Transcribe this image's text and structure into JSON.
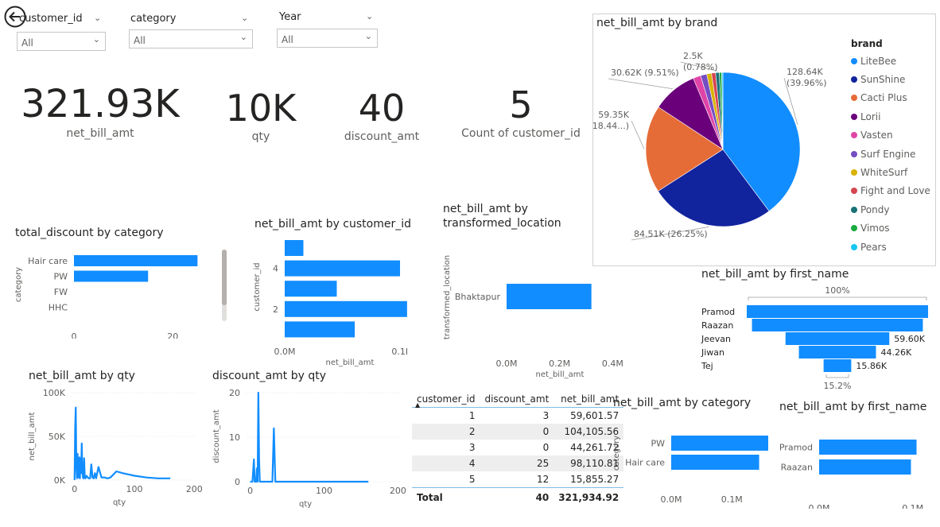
{
  "slicers": [
    {
      "label": "customer_id",
      "value": "All"
    },
    {
      "label": "category",
      "value": "All"
    },
    {
      "label": "Year",
      "value": "All"
    }
  ],
  "kpis": [
    {
      "value": "321.93K",
      "label": "net_bill_amt"
    },
    {
      "value": "10K",
      "label": "qty"
    },
    {
      "value": "40",
      "label": "discount_amt"
    },
    {
      "value": "5",
      "label": "Count of customer_id"
    }
  ],
  "colors": {
    "bar": "#118dff",
    "axis": "#605e5c"
  },
  "table": {
    "headers": [
      "customer_id",
      "discount_amt",
      "net_bill_amt"
    ],
    "rows": [
      [
        "1",
        "3",
        "59,601.57"
      ],
      [
        "2",
        "0",
        "104,105.56"
      ],
      [
        "3",
        "0",
        "44,261.72"
      ],
      [
        "4",
        "25",
        "98,110.81"
      ],
      [
        "5",
        "12",
        "15,855.27"
      ]
    ],
    "total": [
      "Total",
      "40",
      "321,934.92"
    ]
  },
  "chart_data": [
    {
      "id": "pie",
      "type": "pie",
      "title": "net_bill_amt by brand",
      "legend_title": "brand",
      "legend_position": "right",
      "slices": [
        {
          "name": "LiteBee",
          "value": 128.64,
          "color": "#118dff",
          "label": "128.64K",
          "pct": "(39.96%)"
        },
        {
          "name": "SunShine",
          "value": 84.51,
          "color": "#12239e",
          "label": "84.51K (26.25%)"
        },
        {
          "name": "Cacti Plus",
          "value": 59.35,
          "color": "#e66c37",
          "label": "59.35K",
          "pct": "(18.44...)"
        },
        {
          "name": "Lorii",
          "value": 30.62,
          "color": "#6b007b",
          "label": "30.62K (9.51%)"
        },
        {
          "name": "Vasten",
          "value": 5.2,
          "color": "#e044a7",
          "label": ""
        },
        {
          "name": "Surf Engine",
          "value": 4.2,
          "color": "#744ec2",
          "label": ""
        },
        {
          "name": "WhiteSurf",
          "value": 3.2,
          "color": "#d9b300",
          "label": ""
        },
        {
          "name": "Fight and Love",
          "value": 2.8,
          "color": "#d64550",
          "label": ""
        },
        {
          "name": "Pondy",
          "value": 2.5,
          "color": "#197278",
          "label": "2.5K",
          "pct": "(0.78%)"
        },
        {
          "name": "Vimos",
          "value": 1.6,
          "color": "#1aab40",
          "label": ""
        },
        {
          "name": "Pears",
          "value": 0.8,
          "color": "#15c6f4",
          "label": ""
        }
      ]
    },
    {
      "id": "discount_by_category",
      "type": "bar",
      "title": "total_discount by category",
      "ylabel": "category",
      "xlabel": "",
      "categories": [
        "Hair care",
        "PW",
        "FW",
        "HHC"
      ],
      "values": [
        25,
        15,
        0,
        0
      ],
      "xlim": [
        0,
        28
      ],
      "ticks": [
        0,
        20
      ],
      "tick_labels": [
        "0",
        "20"
      ]
    },
    {
      "id": "bill_by_customer",
      "type": "bar",
      "title": "net_bill_amt by customer_id",
      "ylabel": "customer_id",
      "xlabel": "net_bill_amt",
      "categories": [
        "5",
        "4",
        "3",
        "2",
        "1"
      ],
      "category_tick_labels": [
        "",
        "4",
        "",
        "2",
        ""
      ],
      "values": [
        0.0159,
        0.0981,
        0.0443,
        0.1041,
        0.0596
      ],
      "xlim": [
        0,
        0.115
      ],
      "ticks": [
        0,
        0.1
      ],
      "tick_labels": [
        "0.0M",
        "0.1M"
      ]
    },
    {
      "id": "bill_by_location",
      "type": "bar",
      "title": "net_bill_amt by transformed_location",
      "ylabel": "transformed_location",
      "xlabel": "net_bill_amt",
      "categories": [
        "Bhaktapur"
      ],
      "values": [
        0.32
      ],
      "xlim": [
        0,
        0.45
      ],
      "ticks": [
        0,
        0.2,
        0.4
      ],
      "tick_labels": [
        "0.0M",
        "0.2M",
        "0.4M"
      ]
    },
    {
      "id": "funnel",
      "type": "bar",
      "title": "net_bill_amt by first_name",
      "top_label": "100%",
      "bottom_label": "15.2%",
      "categories": [
        "Pramod",
        "Raazan",
        "Jeevan",
        "Jiwan",
        "Tej"
      ],
      "values": [
        104.11,
        98.11,
        59.6,
        44.26,
        15.86
      ],
      "value_labels": [
        "",
        "",
        "59.60K",
        "44.26K",
        "15.86K"
      ]
    },
    {
      "id": "bill_by_qty",
      "type": "line",
      "title": "net_bill_amt by qty",
      "xlabel": "qty",
      "ylabel": "net_bill_amt",
      "x": [
        0,
        1,
        2,
        3,
        4,
        5,
        6,
        7,
        8,
        9,
        10,
        11,
        12,
        13,
        14,
        15,
        16,
        17,
        18,
        20,
        22,
        24,
        26,
        28,
        30,
        32,
        34,
        36,
        40,
        45,
        50,
        55,
        60,
        70,
        80,
        100,
        120,
        140,
        160
      ],
      "y": [
        0,
        60000,
        83000,
        15000,
        2000,
        30000,
        5000,
        3000,
        26000,
        2000,
        25000,
        8000,
        42000,
        12000,
        3000,
        2000,
        25000,
        3000,
        2000,
        5000,
        3000,
        2000,
        2000,
        18000,
        3000,
        2000,
        8000,
        2000,
        15000,
        3000,
        3000,
        2000,
        3000,
        10000,
        8000,
        5000,
        3000,
        2000,
        2000
      ],
      "xlim": [
        -5,
        205
      ],
      "ylim": [
        0,
        100000
      ],
      "xticks": [
        0,
        100,
        200
      ],
      "yticks": [
        0,
        50000,
        100000
      ],
      "ytick_labels": [
        "0K",
        "50K",
        "100K"
      ]
    },
    {
      "id": "discount_by_qty",
      "type": "line",
      "title": "discount_amt by qty",
      "xlabel": "qty",
      "ylabel": "discount_amt",
      "x": [
        0,
        3,
        5,
        6,
        7,
        8,
        9,
        10,
        11,
        12,
        13,
        14,
        15,
        17,
        20,
        25,
        30,
        32,
        34,
        36,
        38,
        40,
        45,
        60,
        80,
        100,
        120,
        140,
        160
      ],
      "y": [
        0,
        0,
        5,
        0,
        0,
        0,
        3,
        0,
        20,
        5,
        0,
        0,
        0,
        0,
        0,
        0,
        0,
        12,
        0,
        0,
        0,
        0,
        0,
        0,
        0,
        0,
        0,
        0,
        0
      ],
      "xlim": [
        -5,
        205
      ],
      "ylim": [
        0,
        20
      ],
      "xticks": [
        0,
        100,
        200
      ],
      "yticks": [
        0,
        10,
        20
      ]
    },
    {
      "id": "bill_by_category",
      "type": "bar",
      "title": "net_bill_amt by category",
      "ylabel": "category",
      "xlabel": "",
      "categories": [
        "PW",
        "Hair care"
      ],
      "values": [
        0.16,
        0.145
      ],
      "xlim": [
        0,
        0.24
      ],
      "ticks": [
        0,
        0.1,
        0.2
      ],
      "tick_labels": [
        "0.0M",
        "0.1M",
        "0.2M"
      ]
    },
    {
      "id": "bill_by_first_name",
      "type": "bar",
      "title": "net_bill_amt by first_name",
      "ylabel": "",
      "xlabel": "",
      "categories": [
        "Pramod",
        "Raazan"
      ],
      "values": [
        0.1041,
        0.0981
      ],
      "xlim": [
        0,
        0.13
      ],
      "ticks": [
        0,
        0.1
      ],
      "tick_labels": [
        "0.0M",
        "0.1M"
      ]
    }
  ]
}
